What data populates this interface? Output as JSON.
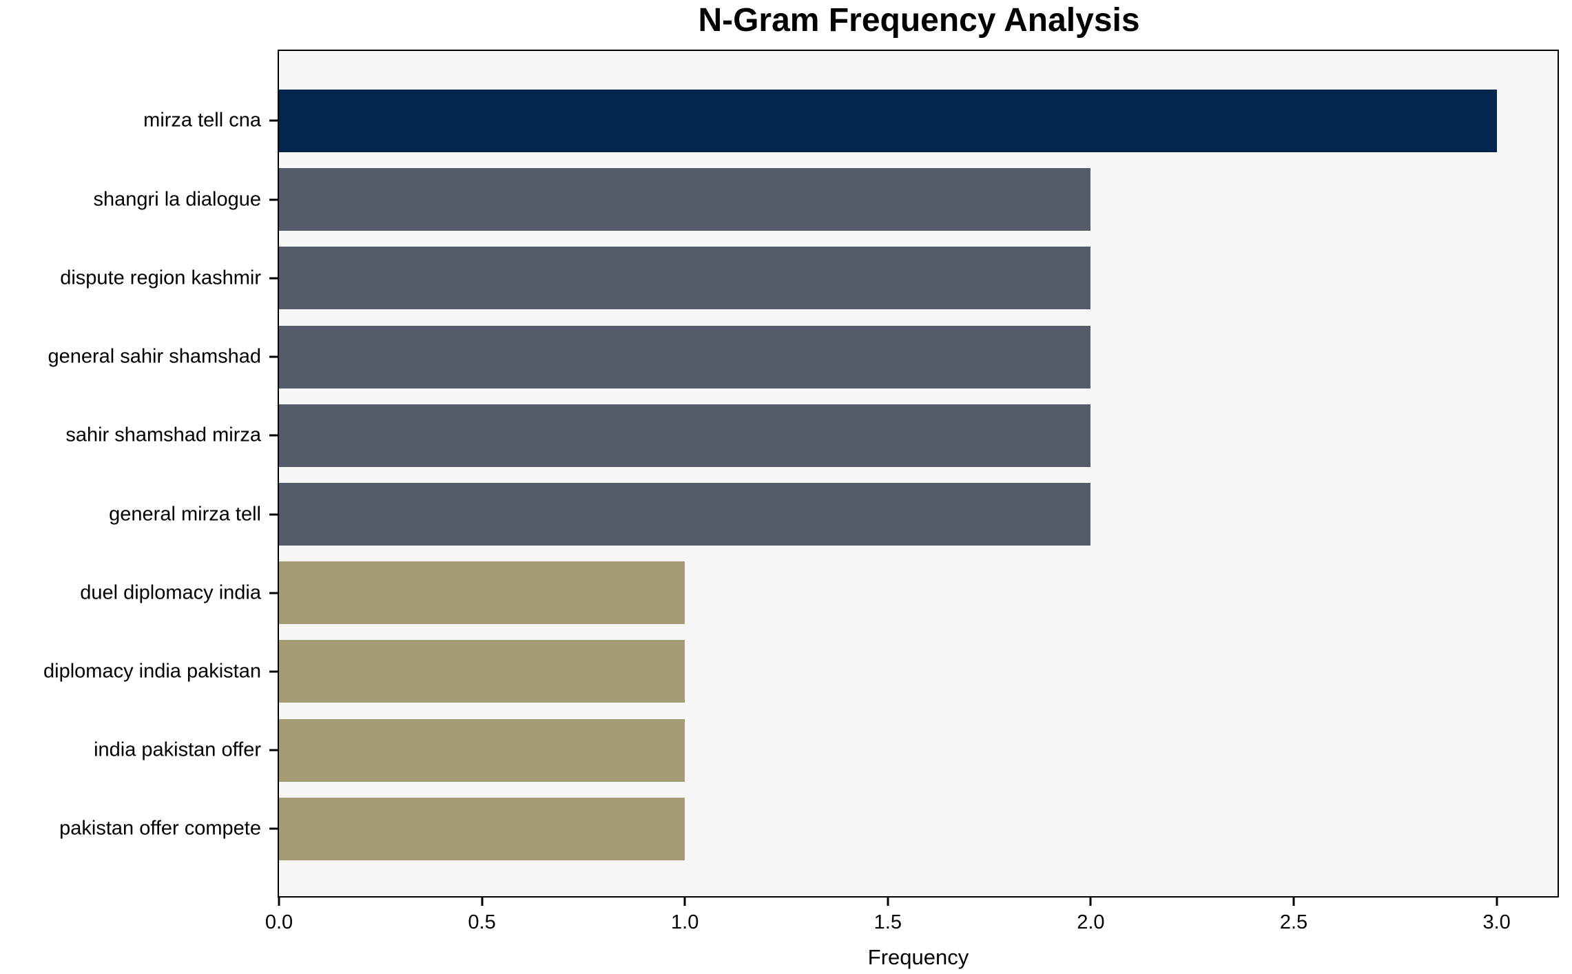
{
  "title": "N-Gram Frequency Analysis",
  "chart_data": {
    "type": "bar",
    "orientation": "horizontal",
    "title": "N-Gram Frequency Analysis",
    "xlabel": "Frequency",
    "ylabel": "",
    "categories": [
      "mirza tell cna",
      "shangri la dialogue",
      "dispute region kashmir",
      "general sahir shamshad",
      "sahir shamshad mirza",
      "general mirza tell",
      "duel diplomacy india",
      "diplomacy india pakistan",
      "india pakistan offer",
      "pakistan offer compete"
    ],
    "values": [
      3,
      2,
      2,
      2,
      2,
      2,
      1,
      1,
      1,
      1
    ],
    "bar_colors": [
      "#00254e",
      "#565b69",
      "#565b69",
      "#565b69",
      "#565b69",
      "#565b69",
      "#a49c72",
      "#a49c72",
      "#a49c72",
      "#a49c72"
    ],
    "xlim": [
      0,
      3.15
    ],
    "x_ticks": [
      0.0,
      0.5,
      1.0,
      1.5,
      2.0,
      2.5,
      3.0
    ],
    "x_tick_labels": [
      "0.0",
      "0.5",
      "1.0",
      "1.5",
      "2.0",
      "2.5",
      "3.0"
    ],
    "grid": false,
    "legend_position": "none",
    "plot_background": "#f7f7f7",
    "figure_background": "#ffffff",
    "axis_text_color": "#000000"
  }
}
